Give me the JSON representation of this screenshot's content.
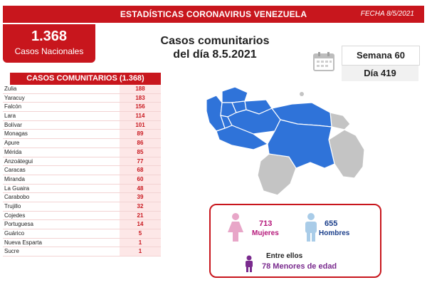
{
  "header": {
    "title": "ESTADÍSTICAS CORONAVIRUS VENEZUELA",
    "date": "FECHA 8/5/2021"
  },
  "national": {
    "count": "1.368",
    "label": "Casos Nacionales"
  },
  "headline": {
    "line1": "Casos comunitarios",
    "line2": "del día 8.5.2021"
  },
  "week": "Semana 60",
  "day": "Día 419",
  "table": {
    "title": "CASOS COMUNITARIOS (1.368)",
    "rows": [
      {
        "state": "Zulia",
        "cases": "188"
      },
      {
        "state": "Yaracuy",
        "cases": "183"
      },
      {
        "state": "Falcón",
        "cases": "156"
      },
      {
        "state": "Lara",
        "cases": "114"
      },
      {
        "state": "Bolívar",
        "cases": "101"
      },
      {
        "state": "Monagas",
        "cases": "89"
      },
      {
        "state": "Apure",
        "cases": "86"
      },
      {
        "state": "Mérida",
        "cases": "85"
      },
      {
        "state": "Anzoátegui",
        "cases": "77"
      },
      {
        "state": "Caracas",
        "cases": "68"
      },
      {
        "state": "Miranda",
        "cases": "60"
      },
      {
        "state": "La Guaira",
        "cases": "48"
      },
      {
        "state": "Carabobo",
        "cases": "39"
      },
      {
        "state": "Trujillo",
        "cases": "32"
      },
      {
        "state": "Cojedes",
        "cases": "21"
      },
      {
        "state": "Portuguesa",
        "cases": "14"
      },
      {
        "state": "Guárico",
        "cases": "5"
      },
      {
        "state": "Nueva Esparta",
        "cases": "1"
      },
      {
        "state": "Sucre",
        "cases": "1"
      }
    ]
  },
  "demographics": {
    "women_count": "713",
    "women_label": "Mujeres",
    "men_count": "655",
    "men_label": "Hombres",
    "between_label": "Entre ellos",
    "minors": "78 Menores de edad"
  },
  "colors": {
    "brand_red": "#c8161d",
    "map_affected": "#2f73d9",
    "map_unaffected": "#c4c4c4",
    "women": "#e8a6c8",
    "men": "#a9cce8",
    "minors": "#7a2b8e"
  },
  "icons": [
    "calendar-icon",
    "female-icon",
    "male-icon",
    "child-icon"
  ]
}
